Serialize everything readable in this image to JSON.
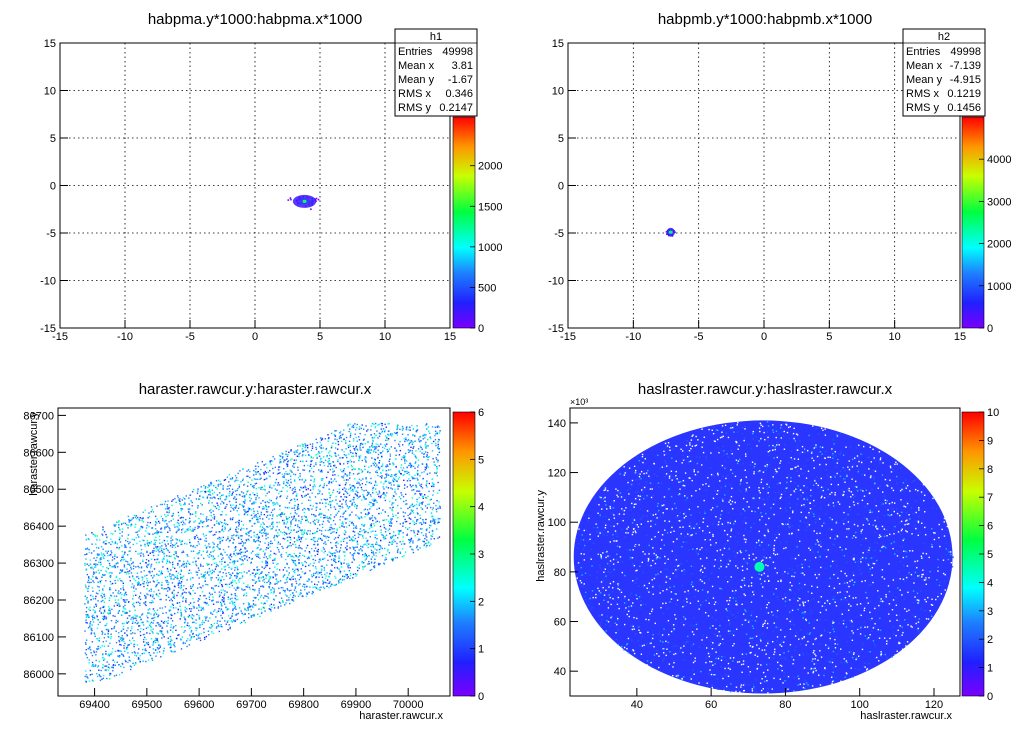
{
  "chart_data": [
    {
      "type": "heatmap",
      "title": "habpma.y*1000:habpma.x*1000",
      "xlabel": "",
      "ylabel": "",
      "xlim": [
        -15,
        15
      ],
      "ylim": [
        -15,
        15
      ],
      "x_ticks": [
        -15,
        -10,
        -5,
        0,
        5,
        10,
        15
      ],
      "y_ticks": [
        -15,
        -10,
        -5,
        0,
        5,
        10,
        15
      ],
      "grid": true,
      "z_range": [
        0,
        2600
      ],
      "z_ticks": [
        0,
        500,
        1000,
        1500,
        2000
      ],
      "stats": {
        "name": "h1",
        "rows": [
          {
            "label": "Entries",
            "value": "49998"
          },
          {
            "label": "Mean x",
            "value": "3.81"
          },
          {
            "label": "Mean y",
            "value": "-1.67"
          },
          {
            "label": "RMS x",
            "value": "0.346"
          },
          {
            "label": "RMS y",
            "value": "0.2147"
          }
        ]
      },
      "blob": {
        "center_x": 3.81,
        "center_y": -1.67,
        "rms_x": 0.346,
        "rms_y": 0.2147,
        "peak": 2600
      }
    },
    {
      "type": "heatmap",
      "title": "habpmb.y*1000:habpmb.x*1000",
      "xlabel": "",
      "ylabel": "",
      "xlim": [
        -15,
        15
      ],
      "ylim": [
        -15,
        15
      ],
      "x_ticks": [
        -15,
        -10,
        -5,
        0,
        5,
        10,
        15
      ],
      "y_ticks": [
        -15,
        -10,
        -5,
        0,
        5,
        10,
        15
      ],
      "grid": true,
      "z_range": [
        0,
        5000
      ],
      "z_ticks": [
        0,
        1000,
        2000,
        3000,
        4000
      ],
      "stats": {
        "name": "h2",
        "rows": [
          {
            "label": "Entries",
            "value": "49998"
          },
          {
            "label": "Mean x",
            "value": "-7.139"
          },
          {
            "label": "Mean y",
            "value": "-4.915"
          },
          {
            "label": "RMS x",
            "value": "0.1219"
          },
          {
            "label": "RMS y",
            "value": "0.1456"
          }
        ]
      },
      "blob": {
        "center_x": -7.139,
        "center_y": -4.915,
        "rms_x": 0.1219,
        "rms_y": 0.1456,
        "peak": 5000
      }
    },
    {
      "type": "heatmap",
      "title": "haraster.rawcur.y:haraster.rawcur.x",
      "xlabel": "haraster.rawcur.x",
      "ylabel": "haraster.rawcur.y",
      "xlim": [
        69330,
        70080
      ],
      "ylim": [
        85940,
        86720
      ],
      "x_ticks": [
        69400,
        69500,
        69600,
        69700,
        69800,
        69900,
        70000
      ],
      "y_ticks": [
        86000,
        86100,
        86200,
        86300,
        86400,
        86500,
        86600,
        86700
      ],
      "grid": false,
      "z_range": [
        0,
        6
      ],
      "z_ticks": [
        0,
        1,
        2,
        3,
        4,
        5,
        6
      ],
      "region": {
        "shape": "parallelogram",
        "corners": [
          [
            69380,
            85980
          ],
          [
            70060,
            86680
          ]
        ]
      }
    },
    {
      "type": "heatmap",
      "title": "haslraster.rawcur.y:haslraster.rawcur.x",
      "xlabel": "haslraster.rawcur.x",
      "ylabel": "haslraster.rawcur.y",
      "y_exponent": "×10³",
      "xlim": [
        22,
        127
      ],
      "ylim": [
        30,
        146
      ],
      "x_ticks": [
        40,
        60,
        80,
        100,
        120
      ],
      "y_ticks": [
        40,
        60,
        80,
        100,
        120,
        140
      ],
      "grid": false,
      "z_range": [
        0,
        10
      ],
      "z_ticks": [
        0,
        1,
        2,
        3,
        4,
        5,
        6,
        7,
        8,
        9,
        10
      ],
      "region": {
        "shape": "ellipse",
        "center_x": 74,
        "center_y": 86,
        "radius_x": 51,
        "radius_y": 55
      },
      "hotspot": {
        "x": 73,
        "y": 82
      }
    }
  ]
}
